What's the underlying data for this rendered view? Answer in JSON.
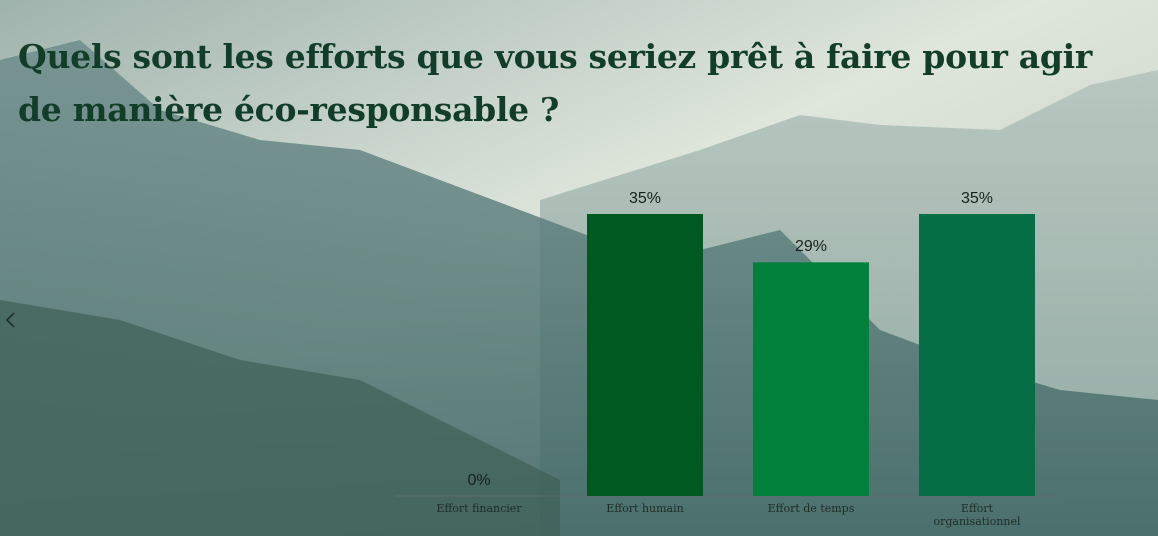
{
  "chart_data": {
    "type": "bar",
    "title": "Quels sont les efforts que vous seriez prêt à faire pour agir de manière éco-responsable ?",
    "categories": [
      "Effort financier",
      "Effort humain",
      "Effort de temps",
      "Effort organisationnel"
    ],
    "values": [
      0,
      35,
      29,
      35
    ],
    "value_labels": [
      "0%",
      "35%",
      "29%",
      "35%"
    ],
    "colors": [
      "#0b6b3a",
      "#005a1f",
      "#00803a",
      "#066e45"
    ],
    "ylim": [
      0,
      35
    ]
  }
}
